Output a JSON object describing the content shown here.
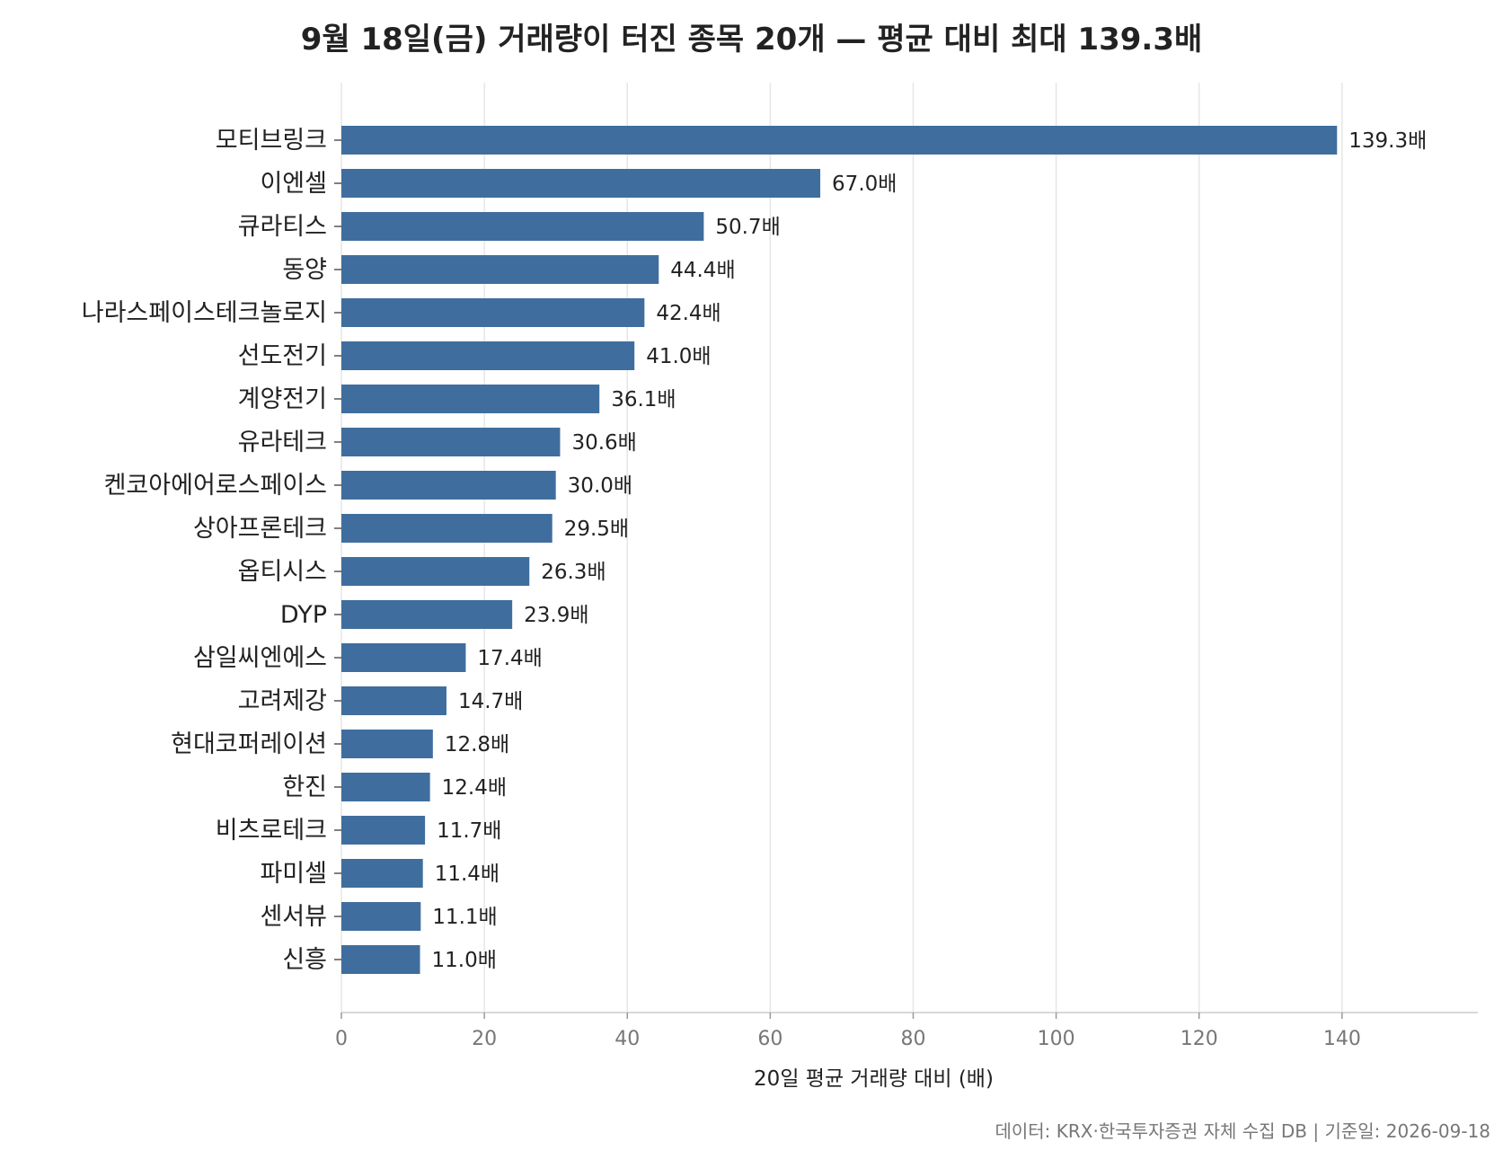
{
  "chart_data": {
    "type": "bar",
    "orientation": "horizontal",
    "title": "9월 18일(금) 거래량이 터진 종목 20개 — 평균 대비 최대 139.3배",
    "xlabel": "20일 평균 거래량 대비 (배)",
    "ylabel": "",
    "xlim": [
      0,
      159
    ],
    "xticks": [
      0,
      20,
      40,
      60,
      80,
      100,
      120,
      140
    ],
    "grid": "vertical",
    "bar_color": "#3f6e9e",
    "value_suffix": "배",
    "categories": [
      "모티브링크",
      "이엔셀",
      "큐라티스",
      "동양",
      "나라스페이스테크놀로지",
      "선도전기",
      "계양전기",
      "유라테크",
      "켄코아에어로스페이스",
      "상아프론테크",
      "옵티시스",
      "DYP",
      "삼일씨엔에스",
      "고려제강",
      "현대코퍼레이션",
      "한진",
      "비츠로테크",
      "파미셀",
      "센서뷰",
      "신흥"
    ],
    "values": [
      139.3,
      67.0,
      50.7,
      44.4,
      42.4,
      41.0,
      36.1,
      30.6,
      30.0,
      29.5,
      26.3,
      23.9,
      17.4,
      14.7,
      12.8,
      12.4,
      11.7,
      11.4,
      11.1,
      11.0
    ],
    "value_labels": [
      "139.3배",
      "67.0배",
      "50.7배",
      "44.4배",
      "42.4배",
      "41.0배",
      "36.1배",
      "30.6배",
      "30.0배",
      "29.5배",
      "26.3배",
      "23.9배",
      "17.4배",
      "14.7배",
      "12.8배",
      "12.4배",
      "11.7배",
      "11.4배",
      "11.1배",
      "11.0배"
    ]
  },
  "source_note": "데이터: KRX·한국투자증권 자체 수집 DB  |  기준일: 2026-09-18"
}
